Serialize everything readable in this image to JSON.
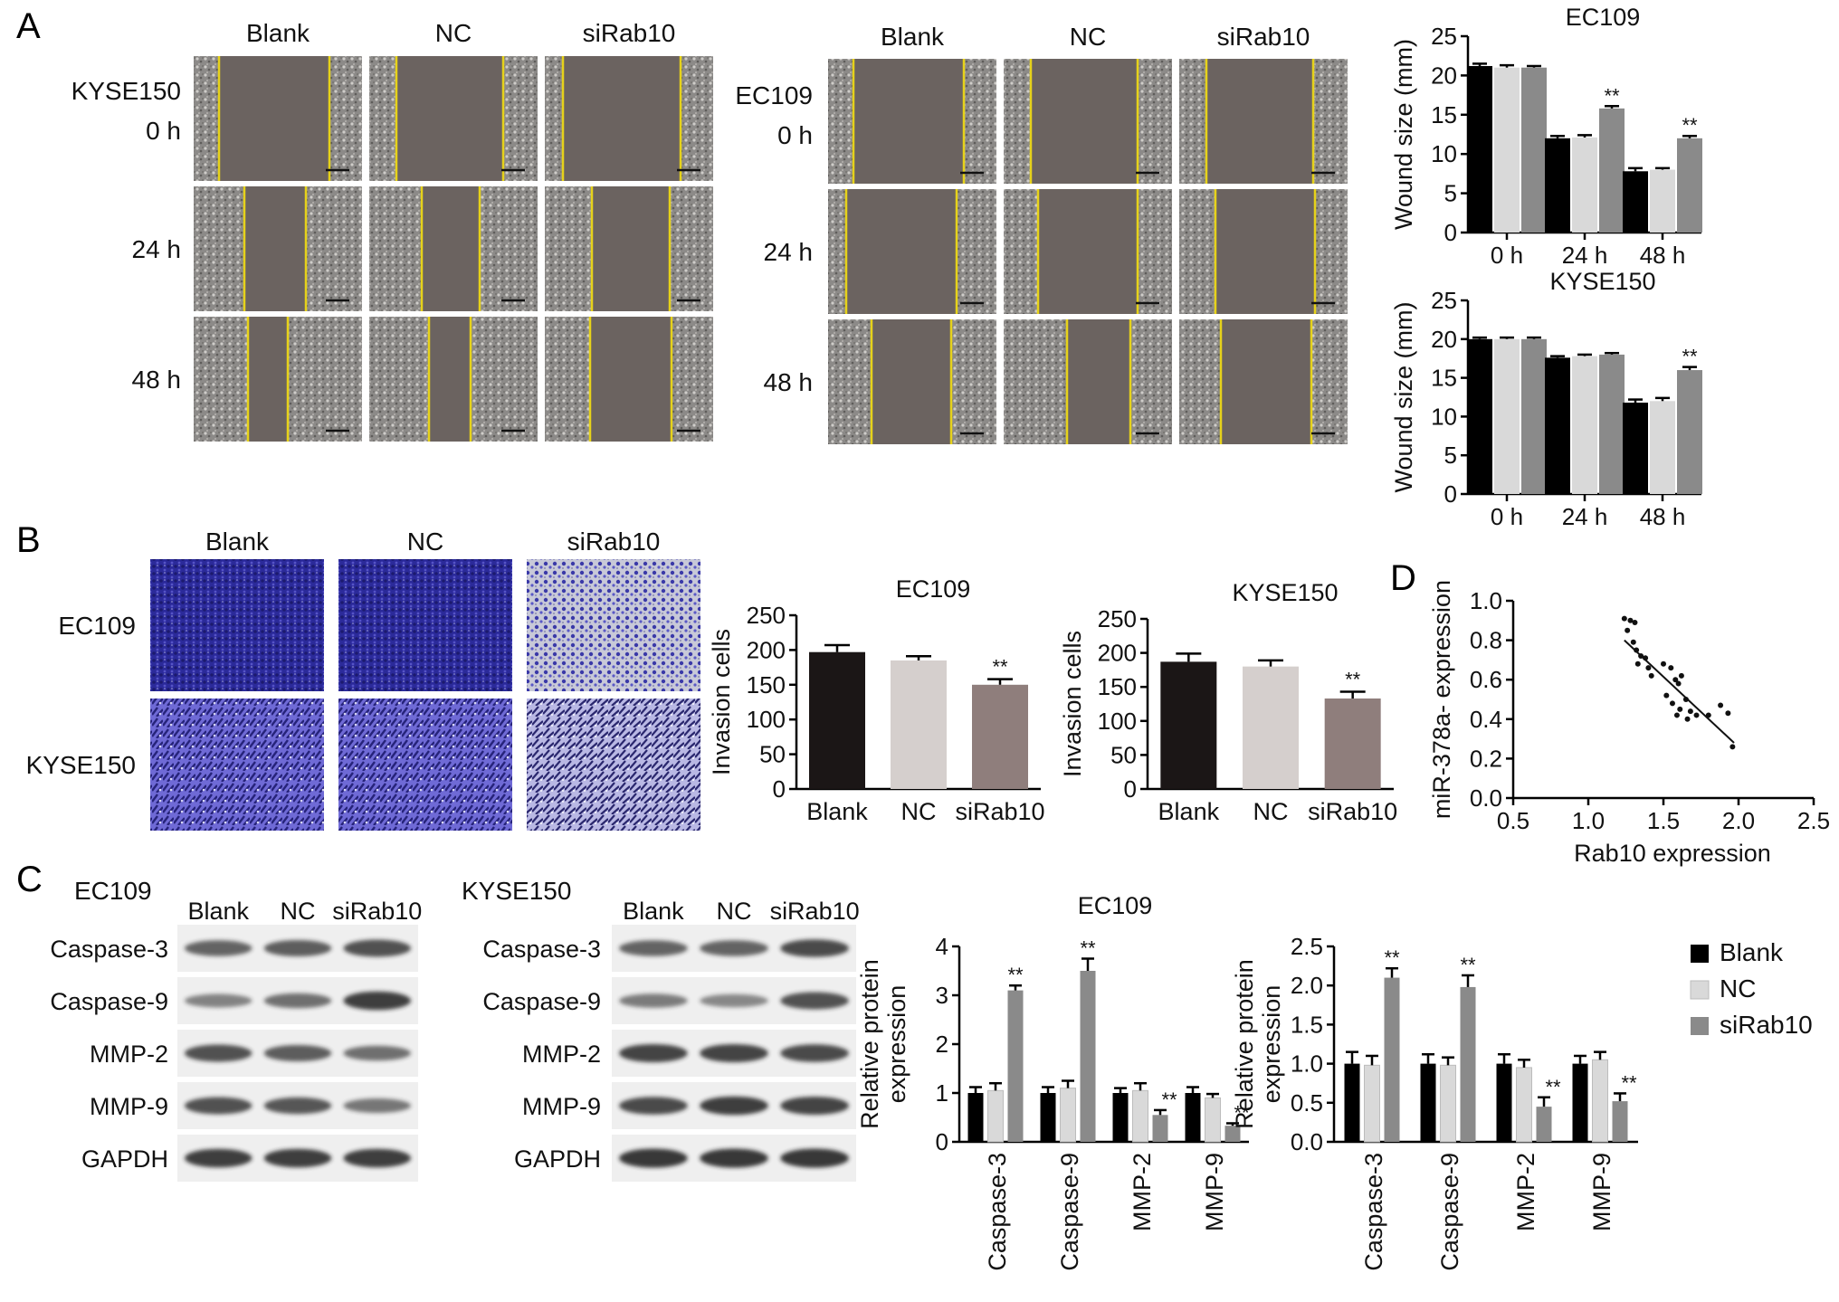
{
  "panels": {
    "A": "A",
    "B": "B",
    "C": "C",
    "D": "D"
  },
  "groups": [
    "Blank",
    "NC",
    "siRab10"
  ],
  "time_rows": [
    "0 h",
    "24 h",
    "48 h"
  ],
  "wound_images": {
    "left_cell": "KYSE150",
    "right_cell": "EC109"
  },
  "invasion_images": {
    "rows": [
      "EC109",
      "KYSE150"
    ]
  },
  "western": {
    "left_cell": "EC109",
    "right_cell": "KYSE150",
    "proteins": [
      "Caspase-3",
      "Caspase-9",
      "MMP-2",
      "MMP-9",
      "GAPDH"
    ]
  },
  "significance": "**",
  "legend_colors": {
    "Blank": "#000000",
    "NC": "#d9d9d9",
    "siRab10": "#8a8a8a"
  },
  "chart_data": [
    {
      "type": "bar",
      "title": "EC109",
      "ylabel": "Wound size (mm)",
      "categories": [
        "0 h",
        "24 h",
        "48 h"
      ],
      "ylim": [
        0,
        25
      ],
      "yticks": [
        0,
        5,
        10,
        15,
        20,
        25
      ],
      "series": [
        {
          "name": "Blank",
          "values": [
            21.2,
            12.0,
            7.8
          ],
          "err": [
            0.3,
            0.3,
            0.4
          ]
        },
        {
          "name": "NC",
          "values": [
            21.0,
            12.1,
            8.0
          ],
          "err": [
            0.3,
            0.3,
            0.2
          ]
        },
        {
          "name": "siRab10",
          "values": [
            21.0,
            15.8,
            12.0
          ],
          "err": [
            0.2,
            0.3,
            0.3
          ]
        }
      ],
      "sig": [
        null,
        "siRab10",
        "siRab10"
      ]
    },
    {
      "type": "bar",
      "title": "KYSE150",
      "ylabel": "Wound size (mm)",
      "categories": [
        "0 h",
        "24 h",
        "48 h"
      ],
      "ylim": [
        0,
        25
      ],
      "yticks": [
        0,
        5,
        10,
        15,
        20,
        25
      ],
      "series": [
        {
          "name": "Blank",
          "values": [
            20.0,
            17.6,
            11.8
          ],
          "err": [
            0.2,
            0.2,
            0.4
          ]
        },
        {
          "name": "NC",
          "values": [
            20.0,
            17.8,
            12.0
          ],
          "err": [
            0.2,
            0.2,
            0.4
          ]
        },
        {
          "name": "siRab10",
          "values": [
            20.0,
            18.0,
            16.0
          ],
          "err": [
            0.2,
            0.2,
            0.4
          ]
        }
      ],
      "sig": [
        null,
        null,
        "siRab10"
      ]
    },
    {
      "type": "bar",
      "title": "EC109",
      "ylabel": "Invasion cells",
      "categories": [
        "Blank",
        "NC",
        "siRab10"
      ],
      "ylim": [
        0,
        250
      ],
      "yticks": [
        0,
        50,
        100,
        150,
        200,
        250
      ],
      "values": [
        197,
        185,
        150
      ],
      "err": [
        10,
        6,
        8
      ],
      "colors": [
        "#1b1616",
        "#d5cfcd",
        "#8f7e7c"
      ],
      "sig": [
        null,
        null,
        "**"
      ]
    },
    {
      "type": "bar",
      "title": "KYSE150",
      "ylabel": "Invasion cells",
      "categories": [
        "Blank",
        "NC",
        "siRab10"
      ],
      "ylim": [
        0,
        250
      ],
      "yticks": [
        0,
        50,
        100,
        150,
        200,
        250
      ],
      "values": [
        187,
        180,
        133
      ],
      "err": [
        12,
        9,
        10
      ],
      "colors": [
        "#1b1616",
        "#d5cfcd",
        "#8f7e7c"
      ],
      "sig": [
        null,
        null,
        "**"
      ]
    },
    {
      "type": "scatter",
      "title": "",
      "xlabel": "Rab10 expression",
      "ylabel": "miR-378a- expression",
      "xlim": [
        0.5,
        2.5
      ],
      "ylim": [
        0.0,
        1.0
      ],
      "xticks": [
        0.5,
        1.0,
        1.5,
        2.0,
        2.5
      ],
      "yticks": [
        0.0,
        0.2,
        0.4,
        0.6,
        0.8,
        1.0
      ],
      "points": [
        [
          1.24,
          0.91
        ],
        [
          1.28,
          0.9
        ],
        [
          1.31,
          0.89
        ],
        [
          1.26,
          0.85
        ],
        [
          1.3,
          0.79
        ],
        [
          1.32,
          0.75
        ],
        [
          1.35,
          0.72
        ],
        [
          1.38,
          0.71
        ],
        [
          1.33,
          0.68
        ],
        [
          1.4,
          0.66
        ],
        [
          1.42,
          0.62
        ],
        [
          1.5,
          0.68
        ],
        [
          1.55,
          0.66
        ],
        [
          1.58,
          0.6
        ],
        [
          1.62,
          0.62
        ],
        [
          1.6,
          0.58
        ],
        [
          1.52,
          0.52
        ],
        [
          1.56,
          0.48
        ],
        [
          1.65,
          0.5
        ],
        [
          1.61,
          0.45
        ],
        [
          1.68,
          0.44
        ],
        [
          1.72,
          0.42
        ],
        [
          1.66,
          0.4
        ],
        [
          1.59,
          0.42
        ],
        [
          1.8,
          0.42
        ],
        [
          1.88,
          0.47
        ],
        [
          1.93,
          0.43
        ],
        [
          1.96,
          0.26
        ]
      ],
      "fit": [
        [
          1.24,
          0.8
        ],
        [
          1.97,
          0.28
        ]
      ]
    },
    {
      "type": "bar",
      "title": "EC109",
      "ylabel": "Relative protein expression",
      "categories": [
        "Caspase-3",
        "Caspase-9",
        "MMP-2",
        "MMP-9"
      ],
      "ylim": [
        0,
        4
      ],
      "yticks": [
        0,
        1,
        2,
        3,
        4
      ],
      "series": [
        {
          "name": "Blank",
          "values": [
            1.0,
            1.0,
            1.0,
            1.0
          ],
          "err": [
            0.12,
            0.12,
            0.1,
            0.12
          ]
        },
        {
          "name": "NC",
          "values": [
            1.05,
            1.1,
            1.05,
            0.9
          ],
          "err": [
            0.15,
            0.15,
            0.15,
            0.08
          ]
        },
        {
          "name": "siRab10",
          "values": [
            3.1,
            3.5,
            0.55,
            0.33
          ],
          "err": [
            0.1,
            0.25,
            0.1,
            0.05
          ]
        }
      ],
      "sig": [
        "siRab10",
        "siRab10",
        "siRab10",
        "siRab10"
      ]
    },
    {
      "type": "bar",
      "title": "",
      "ylabel": "Relative protein expression",
      "categories": [
        "Caspase-3",
        "Caspase-9",
        "MMP-2",
        "MMP-9"
      ],
      "ylim": [
        0,
        2.5
      ],
      "yticks": [
        0.0,
        0.5,
        1.0,
        1.5,
        2.0,
        2.5
      ],
      "series": [
        {
          "name": "Blank",
          "values": [
            1.0,
            1.0,
            1.0,
            1.0
          ],
          "err": [
            0.15,
            0.12,
            0.12,
            0.1
          ]
        },
        {
          "name": "NC",
          "values": [
            0.98,
            0.98,
            0.95,
            1.05
          ],
          "err": [
            0.12,
            0.1,
            0.1,
            0.1
          ]
        },
        {
          "name": "siRab10",
          "values": [
            2.1,
            1.98,
            0.45,
            0.52
          ],
          "err": [
            0.12,
            0.15,
            0.12,
            0.1
          ]
        }
      ],
      "sig": [
        "siRab10",
        "siRab10",
        "siRab10",
        "siRab10"
      ]
    }
  ]
}
